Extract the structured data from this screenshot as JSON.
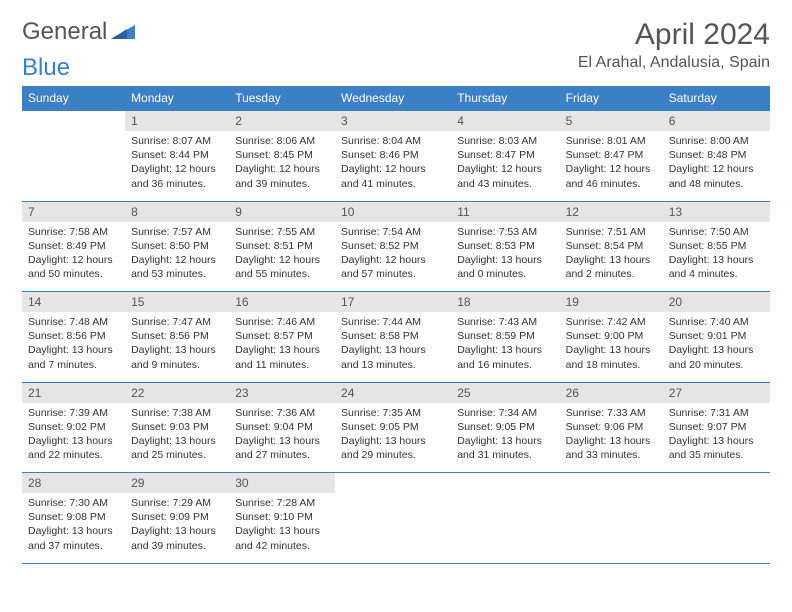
{
  "brand": {
    "part1": "General",
    "part2": "Blue"
  },
  "title": "April 2024",
  "location": "El Arahal, Andalusia, Spain",
  "day_headers": [
    "Sunday",
    "Monday",
    "Tuesday",
    "Wednesday",
    "Thursday",
    "Friday",
    "Saturday"
  ],
  "colors": {
    "header_bg": "#3b7fc4",
    "daynum_bg": "#e5e5e5",
    "text": "#333333",
    "title_text": "#555555"
  },
  "weeks": [
    [
      {
        "empty": true
      },
      {
        "day": "1",
        "sunrise": "Sunrise: 8:07 AM",
        "sunset": "Sunset: 8:44 PM",
        "daylight": "Daylight: 12 hours and 36 minutes."
      },
      {
        "day": "2",
        "sunrise": "Sunrise: 8:06 AM",
        "sunset": "Sunset: 8:45 PM",
        "daylight": "Daylight: 12 hours and 39 minutes."
      },
      {
        "day": "3",
        "sunrise": "Sunrise: 8:04 AM",
        "sunset": "Sunset: 8:46 PM",
        "daylight": "Daylight: 12 hours and 41 minutes."
      },
      {
        "day": "4",
        "sunrise": "Sunrise: 8:03 AM",
        "sunset": "Sunset: 8:47 PM",
        "daylight": "Daylight: 12 hours and 43 minutes."
      },
      {
        "day": "5",
        "sunrise": "Sunrise: 8:01 AM",
        "sunset": "Sunset: 8:47 PM",
        "daylight": "Daylight: 12 hours and 46 minutes."
      },
      {
        "day": "6",
        "sunrise": "Sunrise: 8:00 AM",
        "sunset": "Sunset: 8:48 PM",
        "daylight": "Daylight: 12 hours and 48 minutes."
      }
    ],
    [
      {
        "day": "7",
        "sunrise": "Sunrise: 7:58 AM",
        "sunset": "Sunset: 8:49 PM",
        "daylight": "Daylight: 12 hours and 50 minutes."
      },
      {
        "day": "8",
        "sunrise": "Sunrise: 7:57 AM",
        "sunset": "Sunset: 8:50 PM",
        "daylight": "Daylight: 12 hours and 53 minutes."
      },
      {
        "day": "9",
        "sunrise": "Sunrise: 7:55 AM",
        "sunset": "Sunset: 8:51 PM",
        "daylight": "Daylight: 12 hours and 55 minutes."
      },
      {
        "day": "10",
        "sunrise": "Sunrise: 7:54 AM",
        "sunset": "Sunset: 8:52 PM",
        "daylight": "Daylight: 12 hours and 57 minutes."
      },
      {
        "day": "11",
        "sunrise": "Sunrise: 7:53 AM",
        "sunset": "Sunset: 8:53 PM",
        "daylight": "Daylight: 13 hours and 0 minutes."
      },
      {
        "day": "12",
        "sunrise": "Sunrise: 7:51 AM",
        "sunset": "Sunset: 8:54 PM",
        "daylight": "Daylight: 13 hours and 2 minutes."
      },
      {
        "day": "13",
        "sunrise": "Sunrise: 7:50 AM",
        "sunset": "Sunset: 8:55 PM",
        "daylight": "Daylight: 13 hours and 4 minutes."
      }
    ],
    [
      {
        "day": "14",
        "sunrise": "Sunrise: 7:48 AM",
        "sunset": "Sunset: 8:56 PM",
        "daylight": "Daylight: 13 hours and 7 minutes."
      },
      {
        "day": "15",
        "sunrise": "Sunrise: 7:47 AM",
        "sunset": "Sunset: 8:56 PM",
        "daylight": "Daylight: 13 hours and 9 minutes."
      },
      {
        "day": "16",
        "sunrise": "Sunrise: 7:46 AM",
        "sunset": "Sunset: 8:57 PM",
        "daylight": "Daylight: 13 hours and 11 minutes."
      },
      {
        "day": "17",
        "sunrise": "Sunrise: 7:44 AM",
        "sunset": "Sunset: 8:58 PM",
        "daylight": "Daylight: 13 hours and 13 minutes."
      },
      {
        "day": "18",
        "sunrise": "Sunrise: 7:43 AM",
        "sunset": "Sunset: 8:59 PM",
        "daylight": "Daylight: 13 hours and 16 minutes."
      },
      {
        "day": "19",
        "sunrise": "Sunrise: 7:42 AM",
        "sunset": "Sunset: 9:00 PM",
        "daylight": "Daylight: 13 hours and 18 minutes."
      },
      {
        "day": "20",
        "sunrise": "Sunrise: 7:40 AM",
        "sunset": "Sunset: 9:01 PM",
        "daylight": "Daylight: 13 hours and 20 minutes."
      }
    ],
    [
      {
        "day": "21",
        "sunrise": "Sunrise: 7:39 AM",
        "sunset": "Sunset: 9:02 PM",
        "daylight": "Daylight: 13 hours and 22 minutes."
      },
      {
        "day": "22",
        "sunrise": "Sunrise: 7:38 AM",
        "sunset": "Sunset: 9:03 PM",
        "daylight": "Daylight: 13 hours and 25 minutes."
      },
      {
        "day": "23",
        "sunrise": "Sunrise: 7:36 AM",
        "sunset": "Sunset: 9:04 PM",
        "daylight": "Daylight: 13 hours and 27 minutes."
      },
      {
        "day": "24",
        "sunrise": "Sunrise: 7:35 AM",
        "sunset": "Sunset: 9:05 PM",
        "daylight": "Daylight: 13 hours and 29 minutes."
      },
      {
        "day": "25",
        "sunrise": "Sunrise: 7:34 AM",
        "sunset": "Sunset: 9:05 PM",
        "daylight": "Daylight: 13 hours and 31 minutes."
      },
      {
        "day": "26",
        "sunrise": "Sunrise: 7:33 AM",
        "sunset": "Sunset: 9:06 PM",
        "daylight": "Daylight: 13 hours and 33 minutes."
      },
      {
        "day": "27",
        "sunrise": "Sunrise: 7:31 AM",
        "sunset": "Sunset: 9:07 PM",
        "daylight": "Daylight: 13 hours and 35 minutes."
      }
    ],
    [
      {
        "day": "28",
        "sunrise": "Sunrise: 7:30 AM",
        "sunset": "Sunset: 9:08 PM",
        "daylight": "Daylight: 13 hours and 37 minutes."
      },
      {
        "day": "29",
        "sunrise": "Sunrise: 7:29 AM",
        "sunset": "Sunset: 9:09 PM",
        "daylight": "Daylight: 13 hours and 39 minutes."
      },
      {
        "day": "30",
        "sunrise": "Sunrise: 7:28 AM",
        "sunset": "Sunset: 9:10 PM",
        "daylight": "Daylight: 13 hours and 42 minutes."
      },
      {
        "empty": true
      },
      {
        "empty": true
      },
      {
        "empty": true
      },
      {
        "empty": true
      }
    ]
  ]
}
